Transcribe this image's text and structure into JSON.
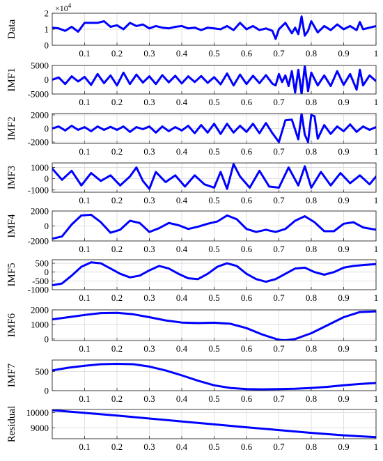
{
  "chart_data": [
    {
      "type": "line",
      "ylabel": "Data",
      "xlim": [
        0,
        1
      ],
      "ylim": [
        0,
        20000
      ],
      "yticks": [
        0,
        10000,
        20000
      ],
      "yticklabels": [
        "0",
        "1",
        "2"
      ],
      "exponent_label": "×10^4",
      "xticks": [
        0.1,
        0.2,
        0.3,
        0.4,
        0.5,
        0.6,
        0.7,
        0.8,
        0.9,
        1
      ],
      "xticklabels": [
        "0.1",
        "0.2",
        "0.3",
        "0.4",
        "0.5",
        "0.6",
        "0.7",
        "0.8",
        "0.9",
        "1"
      ],
      "x": [
        0,
        0.02,
        0.04,
        0.06,
        0.08,
        0.1,
        0.12,
        0.14,
        0.16,
        0.18,
        0.2,
        0.22,
        0.24,
        0.26,
        0.28,
        0.3,
        0.32,
        0.34,
        0.36,
        0.38,
        0.4,
        0.42,
        0.44,
        0.46,
        0.48,
        0.5,
        0.52,
        0.54,
        0.56,
        0.58,
        0.6,
        0.62,
        0.64,
        0.66,
        0.68,
        0.69,
        0.7,
        0.72,
        0.74,
        0.75,
        0.76,
        0.77,
        0.78,
        0.79,
        0.8,
        0.82,
        0.84,
        0.86,
        0.88,
        0.9,
        0.92,
        0.94,
        0.95,
        0.96,
        0.98,
        1
      ],
      "y": [
        11000,
        10500,
        9000,
        11500,
        8500,
        14000,
        14000,
        14000,
        15000,
        11500,
        12500,
        10000,
        14000,
        12000,
        13000,
        10500,
        12000,
        11000,
        10500,
        11500,
        12000,
        10500,
        11000,
        9500,
        11000,
        10500,
        10000,
        12000,
        9500,
        14000,
        10000,
        12000,
        9500,
        10500,
        9000,
        4000,
        10000,
        14000,
        7500,
        11000,
        7000,
        18000,
        6000,
        9000,
        15000,
        8000,
        12000,
        9500,
        13000,
        10000,
        12000,
        9500,
        14500,
        10000,
        11000,
        12000
      ]
    },
    {
      "type": "line",
      "ylabel": "IMF1",
      "xlim": [
        0,
        1
      ],
      "ylim": [
        -5000,
        5000
      ],
      "yticks": [
        -5000,
        0,
        5000
      ],
      "yticklabels": [
        "-5000",
        "0",
        "5000"
      ],
      "xticks": [
        0.1,
        0.2,
        0.3,
        0.4,
        0.5,
        0.6,
        0.7,
        0.8,
        0.9,
        1
      ],
      "xticklabels": [
        "0.1",
        "0.2",
        "0.3",
        "0.4",
        "0.5",
        "0.6",
        "0.7",
        "0.8",
        "0.9",
        "1"
      ],
      "x": [
        0,
        0.02,
        0.04,
        0.06,
        0.08,
        0.1,
        0.12,
        0.14,
        0.16,
        0.18,
        0.2,
        0.22,
        0.24,
        0.26,
        0.28,
        0.3,
        0.32,
        0.34,
        0.36,
        0.38,
        0.4,
        0.42,
        0.44,
        0.46,
        0.48,
        0.5,
        0.52,
        0.54,
        0.56,
        0.58,
        0.6,
        0.62,
        0.64,
        0.66,
        0.68,
        0.69,
        0.7,
        0.71,
        0.72,
        0.73,
        0.74,
        0.75,
        0.76,
        0.77,
        0.78,
        0.79,
        0.8,
        0.82,
        0.84,
        0.86,
        0.88,
        0.9,
        0.92,
        0.94,
        0.95,
        0.96,
        0.98,
        1
      ],
      "y": [
        0,
        800,
        -1500,
        1200,
        -600,
        1000,
        -1800,
        2000,
        -1200,
        1500,
        -2000,
        2500,
        -1500,
        1800,
        -1000,
        1200,
        -1500,
        1600,
        -900,
        1400,
        -1300,
        1200,
        -800,
        1300,
        -1100,
        900,
        -1600,
        2200,
        -2000,
        1800,
        -1500,
        1400,
        -1200,
        1600,
        -1400,
        -2000,
        2000,
        -800,
        1500,
        -2200,
        3000,
        -4500,
        3500,
        -5000,
        4800,
        -4000,
        2500,
        -2000,
        1500,
        -2200,
        3000,
        -1800,
        2000,
        -3500,
        3500,
        -2000,
        1500,
        -500
      ]
    },
    {
      "type": "line",
      "ylabel": "IMF2",
      "xlim": [
        0,
        1
      ],
      "ylim": [
        -2200,
        2200
      ],
      "yticks": [
        -2000,
        0,
        2000
      ],
      "yticklabels": [
        "-2000",
        "0",
        "2000"
      ],
      "xticks": [
        0.1,
        0.2,
        0.3,
        0.4,
        0.5,
        0.6,
        0.7,
        0.8,
        0.9,
        1
      ],
      "xticklabels": [
        "0.1",
        "0.2",
        "0.3",
        "0.4",
        "0.5",
        "0.6",
        "0.7",
        "0.8",
        "0.9",
        "1"
      ],
      "x": [
        0,
        0.02,
        0.04,
        0.06,
        0.08,
        0.1,
        0.12,
        0.14,
        0.16,
        0.18,
        0.2,
        0.22,
        0.24,
        0.26,
        0.28,
        0.3,
        0.32,
        0.34,
        0.36,
        0.38,
        0.4,
        0.42,
        0.44,
        0.46,
        0.48,
        0.5,
        0.52,
        0.54,
        0.56,
        0.58,
        0.6,
        0.62,
        0.64,
        0.66,
        0.68,
        0.7,
        0.72,
        0.74,
        0.76,
        0.77,
        0.78,
        0.79,
        0.8,
        0.81,
        0.82,
        0.84,
        0.86,
        0.88,
        0.9,
        0.92,
        0.94,
        0.96,
        0.98,
        1
      ],
      "y": [
        0,
        300,
        -300,
        400,
        -200,
        200,
        -400,
        300,
        -200,
        250,
        -200,
        300,
        -500,
        200,
        -100,
        300,
        -600,
        300,
        -400,
        200,
        -300,
        400,
        -700,
        500,
        -600,
        700,
        -800,
        700,
        -600,
        400,
        -500,
        700,
        -700,
        800,
        -700,
        -2000,
        1200,
        1300,
        -1600,
        2200,
        -900,
        -2000,
        2000,
        1800,
        -1500,
        500,
        -800,
        300,
        -400,
        600,
        -500,
        300,
        -200,
        200
      ]
    },
    {
      "type": "line",
      "ylabel": "IMF3",
      "xlim": [
        0,
        1
      ],
      "ylim": [
        -1200,
        1400
      ],
      "yticks": [
        -1000,
        0,
        1000
      ],
      "yticklabels": [
        "-1000",
        "0",
        "1000"
      ],
      "xticks": [
        0.1,
        0.2,
        0.3,
        0.4,
        0.5,
        0.6,
        0.7,
        0.8,
        0.9,
        1
      ],
      "xticklabels": [
        "0.1",
        "0.2",
        "0.3",
        "0.4",
        "0.5",
        "0.6",
        "0.7",
        "0.8",
        "0.9",
        "1"
      ],
      "x": [
        0,
        0.03,
        0.06,
        0.09,
        0.12,
        0.15,
        0.18,
        0.21,
        0.24,
        0.26,
        0.28,
        0.3,
        0.32,
        0.35,
        0.38,
        0.41,
        0.44,
        0.47,
        0.5,
        0.52,
        0.54,
        0.56,
        0.58,
        0.61,
        0.64,
        0.67,
        0.7,
        0.73,
        0.76,
        0.78,
        0.8,
        0.83,
        0.86,
        0.89,
        0.92,
        0.95,
        0.98,
        1
      ],
      "y": [
        900,
        -100,
        700,
        -600,
        500,
        -200,
        300,
        -600,
        200,
        1000,
        -200,
        -900,
        600,
        -300,
        300,
        -700,
        300,
        -500,
        -800,
        600,
        -900,
        1300,
        200,
        -800,
        700,
        -700,
        -800,
        1000,
        -600,
        1100,
        -800,
        600,
        -600,
        500,
        -400,
        300,
        -500,
        200
      ]
    },
    {
      "type": "line",
      "ylabel": "IMF4",
      "xlim": [
        0,
        1
      ],
      "ylim": [
        -2000,
        2000
      ],
      "yticks": [
        -2000,
        0,
        2000
      ],
      "yticklabels": [
        "-2000",
        "0",
        "2000"
      ],
      "xticks": [
        0.1,
        0.2,
        0.3,
        0.4,
        0.5,
        0.6,
        0.7,
        0.8,
        0.9,
        1
      ],
      "xticklabels": [
        "0.1",
        "0.2",
        "0.3",
        "0.4",
        "0.5",
        "0.6",
        "0.7",
        "0.8",
        "0.9",
        "1"
      ],
      "x": [
        0,
        0.03,
        0.06,
        0.09,
        0.12,
        0.15,
        0.18,
        0.21,
        0.24,
        0.27,
        0.3,
        0.33,
        0.36,
        0.39,
        0.42,
        0.45,
        0.48,
        0.51,
        0.54,
        0.57,
        0.6,
        0.63,
        0.66,
        0.69,
        0.72,
        0.75,
        0.78,
        0.81,
        0.84,
        0.87,
        0.9,
        0.93,
        0.96,
        1
      ],
      "y": [
        -1700,
        -1400,
        200,
        1400,
        1500,
        500,
        -900,
        -500,
        700,
        400,
        -800,
        -300,
        400,
        100,
        -400,
        -100,
        300,
        600,
        1400,
        900,
        -400,
        -800,
        -500,
        -800,
        -400,
        700,
        1300,
        500,
        -700,
        -700,
        300,
        500,
        -200,
        -500
      ]
    },
    {
      "type": "line",
      "ylabel": "IMF5",
      "xlim": [
        0,
        1
      ],
      "ylim": [
        -1000,
        700
      ],
      "yticks": [
        -1000,
        -500,
        0,
        500
      ],
      "yticklabels": [
        "-1000",
        "-500",
        "0",
        "500"
      ],
      "xticks": [
        0.1,
        0.2,
        0.3,
        0.4,
        0.5,
        0.6,
        0.7,
        0.8,
        0.9,
        1
      ],
      "xticklabels": [
        "0.1",
        "0.2",
        "0.3",
        "0.4",
        "0.5",
        "0.6",
        "0.7",
        "0.8",
        "0.9",
        "1"
      ],
      "x": [
        0,
        0.03,
        0.06,
        0.09,
        0.12,
        0.15,
        0.18,
        0.21,
        0.24,
        0.27,
        0.3,
        0.33,
        0.36,
        0.39,
        0.42,
        0.45,
        0.48,
        0.51,
        0.54,
        0.57,
        0.6,
        0.63,
        0.66,
        0.69,
        0.72,
        0.75,
        0.78,
        0.81,
        0.84,
        0.87,
        0.9,
        0.93,
        0.96,
        1
      ],
      "y": [
        -750,
        -650,
        -200,
        300,
        550,
        500,
        200,
        -100,
        -300,
        -200,
        100,
        350,
        200,
        -100,
        -350,
        -400,
        -100,
        300,
        500,
        350,
        -100,
        -400,
        -550,
        -400,
        -100,
        200,
        250,
        0,
        -150,
        0,
        250,
        350,
        400,
        450
      ]
    },
    {
      "type": "line",
      "ylabel": "IMF6",
      "xlim": [
        0,
        1
      ],
      "ylim": [
        -100,
        2000
      ],
      "yticks": [
        0,
        1000,
        2000
      ],
      "yticklabels": [
        "0",
        "1000",
        "2000"
      ],
      "xticks": [
        0.1,
        0.2,
        0.3,
        0.4,
        0.5,
        0.6,
        0.7,
        0.8,
        0.9,
        1
      ],
      "xticklabels": [
        "0.1",
        "0.2",
        "0.3",
        "0.4",
        "0.5",
        "0.6",
        "0.7",
        "0.8",
        "0.9",
        "1"
      ],
      "x": [
        0,
        0.05,
        0.1,
        0.15,
        0.2,
        0.25,
        0.3,
        0.35,
        0.4,
        0.45,
        0.5,
        0.55,
        0.6,
        0.65,
        0.7,
        0.72,
        0.75,
        0.8,
        0.85,
        0.9,
        0.95,
        1
      ],
      "y": [
        1350,
        1500,
        1650,
        1780,
        1800,
        1700,
        1500,
        1280,
        1130,
        1100,
        1120,
        1050,
        750,
        300,
        -50,
        -80,
        0,
        400,
        950,
        1500,
        1850,
        1900
      ]
    },
    {
      "type": "line",
      "ylabel": "IMF7",
      "xlim": [
        0,
        1
      ],
      "ylim": [
        0,
        800
      ],
      "yticks": [
        0,
        500
      ],
      "yticklabels": [
        "0",
        "500"
      ],
      "xticks": [
        0.1,
        0.2,
        0.3,
        0.4,
        0.5,
        0.6,
        0.7,
        0.8,
        0.9,
        1
      ],
      "xticklabels": [
        "0.1",
        "0.2",
        "0.3",
        "0.4",
        "0.5",
        "0.6",
        "0.7",
        "0.8",
        "0.9",
        "1"
      ],
      "x": [
        0,
        0.05,
        0.1,
        0.15,
        0.2,
        0.25,
        0.3,
        0.35,
        0.4,
        0.45,
        0.5,
        0.55,
        0.6,
        0.65,
        0.7,
        0.75,
        0.8,
        0.85,
        0.9,
        0.95,
        1
      ],
      "y": [
        530,
        600,
        650,
        690,
        700,
        690,
        630,
        530,
        400,
        260,
        140,
        70,
        40,
        35,
        40,
        50,
        70,
        100,
        140,
        175,
        200
      ]
    },
    {
      "type": "line",
      "ylabel": "Residual",
      "xlim": [
        0,
        1
      ],
      "ylim": [
        8300,
        10200
      ],
      "yticks": [
        9000,
        10000
      ],
      "yticklabels": [
        "9000",
        "10000"
      ],
      "xticks": [
        0.1,
        0.2,
        0.3,
        0.4,
        0.5,
        0.6,
        0.7,
        0.8,
        0.9,
        1
      ],
      "xticklabels": [
        "0.1",
        "0.2",
        "0.3",
        "0.4",
        "0.5",
        "0.6",
        "0.7",
        "0.8",
        "0.9",
        "1"
      ],
      "x": [
        0,
        0.1,
        0.2,
        0.3,
        0.4,
        0.5,
        0.6,
        0.7,
        0.8,
        0.9,
        1
      ],
      "y": [
        10150,
        9980,
        9800,
        9610,
        9420,
        9230,
        9040,
        8860,
        8680,
        8520,
        8400
      ]
    }
  ]
}
